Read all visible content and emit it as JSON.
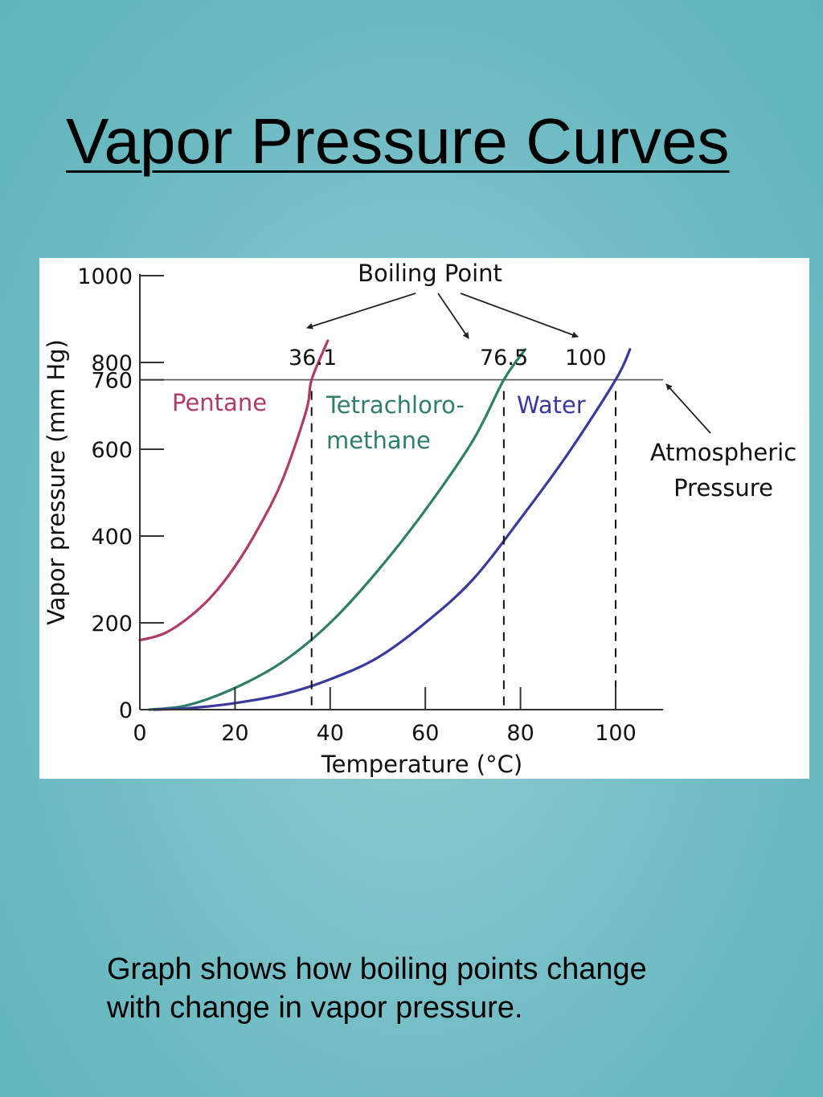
{
  "slide": {
    "title": "Vapor Pressure Curves",
    "caption_lines": [
      "Graph shows how boiling points change",
      "with change in vapor pressure."
    ]
  },
  "chart_data": {
    "type": "line",
    "xlabel": "Temperature (°C)",
    "ylabel": "Vapor pressure (mm Hg)",
    "xlim": [
      0,
      110
    ],
    "ylim": [
      0,
      1000
    ],
    "x_ticks": [
      0,
      20,
      40,
      60,
      80,
      100
    ],
    "x_tick_labels": [
      "0",
      "20",
      "40",
      "60",
      "80",
      "100"
    ],
    "y_ticks": [
      0,
      200,
      400,
      600,
      760,
      800,
      1000
    ],
    "y_tick_labels": [
      "0",
      "200",
      "400",
      "600",
      "760",
      "800",
      "1000"
    ],
    "reference_line": {
      "y": 760,
      "label_lines": [
        "Atmospheric",
        "Pressure"
      ]
    },
    "annotation": "Boiling Point",
    "series": [
      {
        "name": "Pentane",
        "label_lines": [
          "Pentane"
        ],
        "color": "#b03a6b",
        "boiling_point": 36.1,
        "boiling_point_label": "36.1",
        "points": [
          [
            0,
            160
          ],
          [
            5,
            175
          ],
          [
            10,
            210
          ],
          [
            15,
            260
          ],
          [
            20,
            330
          ],
          [
            25,
            420
          ],
          [
            30,
            530
          ],
          [
            35,
            690
          ],
          [
            36.1,
            760
          ],
          [
            39.5,
            850
          ]
        ]
      },
      {
        "name": "Tetrachloromethane",
        "label_lines": [
          "Tetrachloro-",
          "methane"
        ],
        "color": "#2f7e6a",
        "boiling_point": 76.5,
        "boiling_point_label": "76.5",
        "points": [
          [
            2,
            0
          ],
          [
            10,
            10
          ],
          [
            20,
            50
          ],
          [
            30,
            110
          ],
          [
            40,
            200
          ],
          [
            50,
            320
          ],
          [
            60,
            460
          ],
          [
            70,
            620
          ],
          [
            76.5,
            760
          ],
          [
            81,
            830
          ]
        ]
      },
      {
        "name": "Water",
        "label_lines": [
          "Water"
        ],
        "color": "#3a3a9e",
        "boiling_point": 100,
        "boiling_point_label": "100",
        "points": [
          [
            3,
            0
          ],
          [
            10,
            3
          ],
          [
            20,
            15
          ],
          [
            30,
            35
          ],
          [
            40,
            70
          ],
          [
            50,
            120
          ],
          [
            60,
            200
          ],
          [
            70,
            300
          ],
          [
            80,
            440
          ],
          [
            90,
            590
          ],
          [
            100,
            760
          ],
          [
            103,
            830
          ]
        ]
      }
    ]
  }
}
